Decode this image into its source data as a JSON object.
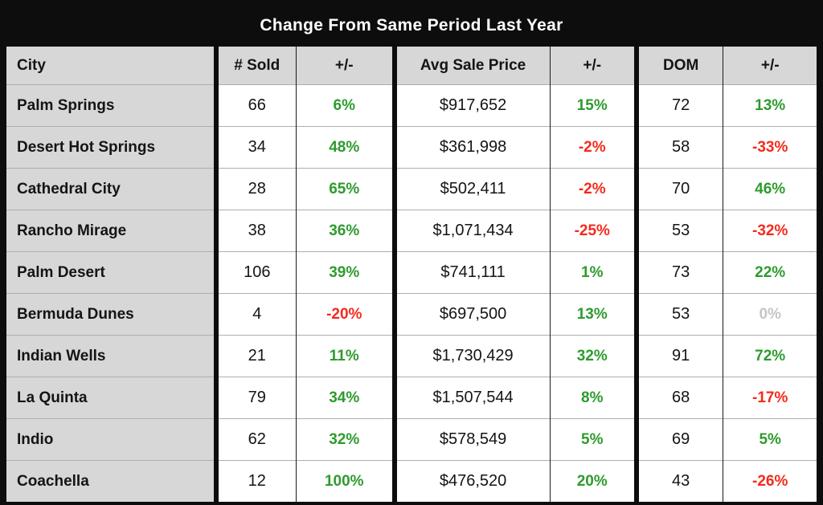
{
  "colors": {
    "positive": "#2e9b2e",
    "negative": "#f42a1d",
    "zero": "#c6c6c6",
    "frame": "#0d0d0d",
    "header_gray": "#d7d7d7"
  },
  "chart_data": {
    "type": "table",
    "title": "Change From Same Period Last Year",
    "columns": [
      {
        "key": "city",
        "label": "City"
      },
      {
        "key": "sold",
        "label": "# Sold"
      },
      {
        "key": "sold_change",
        "label": "+/-"
      },
      {
        "key": "avg_price",
        "label": "Avg Sale Price"
      },
      {
        "key": "price_change",
        "label": "+/-"
      },
      {
        "key": "dom",
        "label": "DOM"
      },
      {
        "key": "dom_change",
        "label": "+/-"
      }
    ],
    "rows": [
      {
        "city": "Palm Springs",
        "sold": 66,
        "sold_change": 6,
        "avg_price": "$917,652",
        "price_change": 15,
        "dom": 72,
        "dom_change": 13
      },
      {
        "city": "Desert Hot Springs",
        "sold": 34,
        "sold_change": 48,
        "avg_price": "$361,998",
        "price_change": -2,
        "dom": 58,
        "dom_change": -33
      },
      {
        "city": "Cathedral City",
        "sold": 28,
        "sold_change": 65,
        "avg_price": "$502,411",
        "price_change": -2,
        "dom": 70,
        "dom_change": 46
      },
      {
        "city": "Rancho Mirage",
        "sold": 38,
        "sold_change": 36,
        "avg_price": "$1,071,434",
        "price_change": -25,
        "dom": 53,
        "dom_change": -32
      },
      {
        "city": "Palm Desert",
        "sold": 106,
        "sold_change": 39,
        "avg_price": "$741,111",
        "price_change": 1,
        "dom": 73,
        "dom_change": 22
      },
      {
        "city": "Bermuda Dunes",
        "sold": 4,
        "sold_change": -20,
        "avg_price": "$697,500",
        "price_change": 13,
        "dom": 53,
        "dom_change": 0
      },
      {
        "city": "Indian Wells",
        "sold": 21,
        "sold_change": 11,
        "avg_price": "$1,730,429",
        "price_change": 32,
        "dom": 91,
        "dom_change": 72
      },
      {
        "city": "La Quinta",
        "sold": 79,
        "sold_change": 34,
        "avg_price": "$1,507,544",
        "price_change": 8,
        "dom": 68,
        "dom_change": -17
      },
      {
        "city": "Indio",
        "sold": 62,
        "sold_change": 32,
        "avg_price": "$578,549",
        "price_change": 5,
        "dom": 69,
        "dom_change": 5
      },
      {
        "city": "Coachella",
        "sold": 12,
        "sold_change": 100,
        "avg_price": "$476,520",
        "price_change": 20,
        "dom": 43,
        "dom_change": -26
      }
    ]
  }
}
